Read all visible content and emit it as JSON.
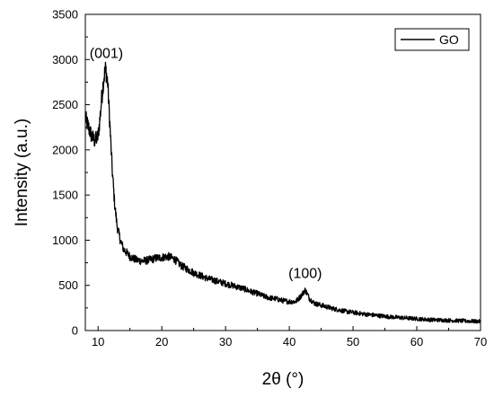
{
  "chart_data": {
    "type": "line",
    "xlabel": "2θ (°)",
    "ylabel": "Intensity (a.u.)",
    "xlim": [
      8,
      70
    ],
    "ylim": [
      0,
      3500
    ],
    "xticks": [
      10,
      20,
      30,
      40,
      50,
      60,
      70
    ],
    "yticks": [
      0,
      500,
      1000,
      1500,
      2000,
      2500,
      3000,
      3500
    ],
    "grid": false,
    "legend": {
      "placement": "top-right",
      "entries": [
        "GO"
      ]
    },
    "annotations": [
      {
        "text": "(001)",
        "x": 11.3,
        "y": 3000
      },
      {
        "text": "(100)",
        "x": 42.5,
        "y": 560
      }
    ],
    "series": [
      {
        "name": "GO",
        "color": "#000000",
        "x": [
          8,
          8.5,
          9,
          9.5,
          10,
          10.3,
          10.6,
          10.9,
          11.2,
          11.5,
          11.8,
          12.2,
          12.6,
          13,
          13.5,
          14,
          15,
          16,
          17,
          18,
          19,
          20,
          21,
          22,
          23,
          24,
          25,
          26,
          27,
          28,
          29,
          30,
          31,
          32,
          33,
          34,
          35,
          36,
          37,
          38,
          39,
          40,
          41,
          41.8,
          42.5,
          43.2,
          44,
          45,
          46,
          47,
          48,
          49,
          50,
          52,
          54,
          56,
          58,
          60,
          62,
          64,
          66,
          68,
          70
        ],
        "y": [
          2350,
          2250,
          2150,
          2100,
          2150,
          2350,
          2600,
          2800,
          2900,
          2750,
          2350,
          1800,
          1400,
          1150,
          1000,
          900,
          820,
          780,
          770,
          780,
          800,
          810,
          820,
          790,
          720,
          680,
          640,
          610,
          580,
          560,
          540,
          520,
          500,
          480,
          460,
          430,
          410,
          380,
          360,
          350,
          330,
          320,
          320,
          380,
          450,
          350,
          300,
          280,
          260,
          240,
          225,
          210,
          200,
          180,
          165,
          150,
          140,
          130,
          120,
          115,
          110,
          105,
          100
        ]
      }
    ]
  }
}
